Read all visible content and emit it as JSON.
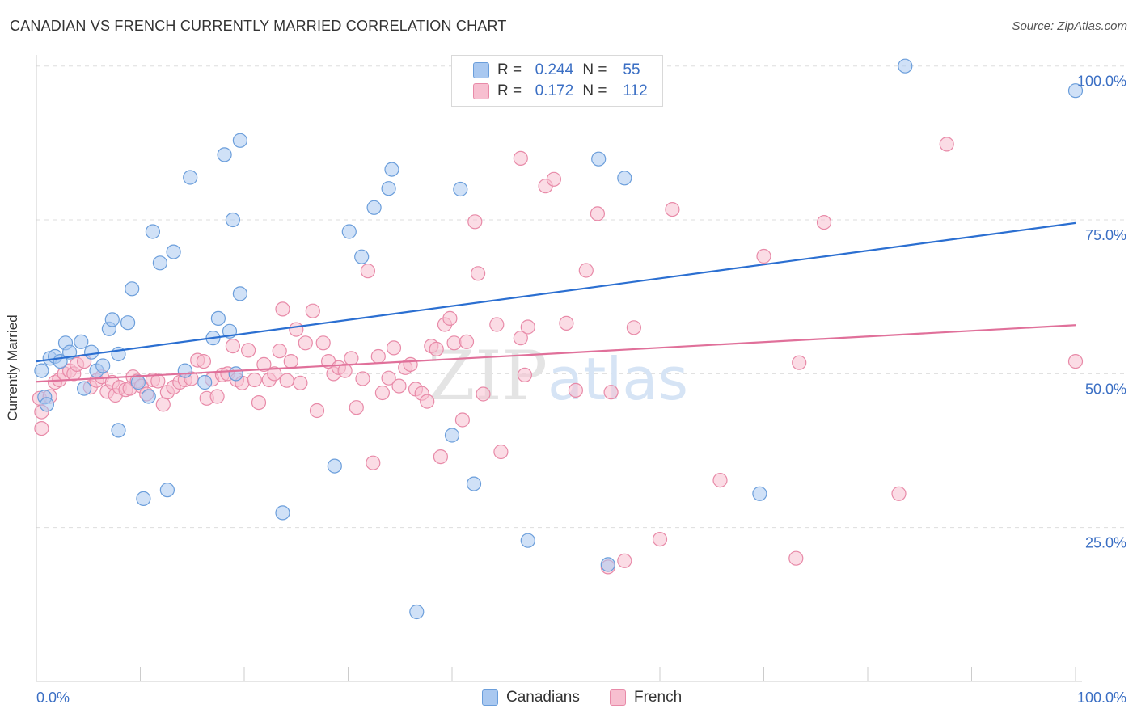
{
  "title": "CANADIAN VS FRENCH CURRENTLY MARRIED CORRELATION CHART",
  "source": "Source: ZipAtlas.com",
  "watermark": "ZIPatlas",
  "legend_top": {
    "rows": [
      {
        "r_label": "R =",
        "r_value": "0.244",
        "n_label": "N =",
        "n_value": "55",
        "color": "#a9c8f0"
      },
      {
        "r_label": "R =",
        "r_value": "0.172",
        "n_label": "N =",
        "n_value": "112",
        "color": "#f7bfd0"
      }
    ]
  },
  "legend_bottom": {
    "items": [
      {
        "label": "Canadians",
        "color": "#a9c8f0"
      },
      {
        "label": "French",
        "color": "#f7bfd0"
      }
    ]
  },
  "colors": {
    "canadians_fill": "#a9c8f0",
    "canadians_stroke": "#6b9edb",
    "canadians_line": "#2b6fd1",
    "french_fill": "#f7bfd0",
    "french_stroke": "#e88aa8",
    "french_line": "#e0709a",
    "tick_label": "#3b6fc4",
    "grid": "#dddddd"
  },
  "chart_data": {
    "type": "scatter",
    "title": "CANADIAN VS FRENCH CURRENTLY MARRIED CORRELATION CHART",
    "xlabel": "",
    "ylabel": "Currently Married",
    "x_tick_labels": [
      "0.0%",
      "100.0%"
    ],
    "y_tick_labels": [
      "25.0%",
      "50.0%",
      "75.0%",
      "100.0%"
    ],
    "xlim": [
      0,
      100
    ],
    "ylim": [
      0,
      102
    ],
    "grid": true,
    "legend_placement": "top-center",
    "series": [
      {
        "name": "Canadians",
        "r": 0.244,
        "n": 55,
        "trend": {
          "x": [
            0,
            100
          ],
          "y": [
            52.0,
            74.5
          ]
        },
        "points": [
          [
            0.5,
            50.5
          ],
          [
            1.3,
            52.5
          ],
          [
            1.8,
            52.8
          ],
          [
            2.3,
            52.0
          ],
          [
            2.8,
            55.0
          ],
          [
            3.2,
            53.5
          ],
          [
            4.3,
            55.2
          ],
          [
            4.6,
            47.6
          ],
          [
            5.3,
            53.5
          ],
          [
            5.8,
            50.5
          ],
          [
            6.4,
            51.3
          ],
          [
            7.0,
            57.3
          ],
          [
            7.3,
            58.8
          ],
          [
            7.9,
            53.2
          ],
          [
            7.9,
            40.8
          ],
          [
            8.8,
            58.3
          ],
          [
            9.2,
            63.8
          ],
          [
            9.8,
            48.6
          ],
          [
            10.3,
            29.7
          ],
          [
            10.8,
            46.3
          ],
          [
            11.2,
            73.1
          ],
          [
            11.9,
            68.0
          ],
          [
            12.6,
            31.1
          ],
          [
            13.2,
            69.8
          ],
          [
            14.3,
            50.5
          ],
          [
            14.8,
            81.9
          ],
          [
            16.2,
            48.6
          ],
          [
            17.0,
            55.8
          ],
          [
            17.5,
            59.0
          ],
          [
            18.1,
            85.6
          ],
          [
            18.6,
            56.9
          ],
          [
            18.9,
            75.0
          ],
          [
            19.2,
            50.0
          ],
          [
            19.6,
            87.9
          ],
          [
            19.6,
            63.0
          ],
          [
            23.7,
            27.4
          ],
          [
            28.7,
            35.0
          ],
          [
            30.1,
            73.1
          ],
          [
            31.3,
            69.0
          ],
          [
            32.5,
            77.0
          ],
          [
            33.9,
            80.1
          ],
          [
            34.2,
            83.2
          ],
          [
            36.6,
            11.3
          ],
          [
            40.0,
            40.0
          ],
          [
            40.8,
            80.0
          ],
          [
            42.1,
            32.1
          ],
          [
            47.3,
            22.9
          ],
          [
            54.1,
            84.9
          ],
          [
            55.0,
            19.0
          ],
          [
            56.6,
            81.8
          ],
          [
            69.6,
            30.5
          ],
          [
            83.6,
            100.0
          ],
          [
            100.0,
            96.0
          ],
          [
            0.8,
            46.2
          ],
          [
            1.0,
            45.0
          ]
        ]
      },
      {
        "name": "French",
        "r": 0.172,
        "n": 112,
        "trend": {
          "x": [
            0,
            100
          ],
          "y": [
            48.7,
            57.9
          ]
        },
        "points": [
          [
            0.3,
            46.0
          ],
          [
            0.5,
            43.8
          ],
          [
            0.5,
            41.1
          ],
          [
            1.3,
            46.3
          ],
          [
            1.8,
            48.6
          ],
          [
            2.2,
            49.0
          ],
          [
            2.7,
            50.0
          ],
          [
            3.2,
            50.5
          ],
          [
            3.6,
            50.0
          ],
          [
            3.9,
            51.5
          ],
          [
            4.6,
            52.0
          ],
          [
            5.2,
            47.8
          ],
          [
            5.8,
            48.9
          ],
          [
            6.3,
            49.5
          ],
          [
            6.8,
            47.1
          ],
          [
            7.3,
            48.6
          ],
          [
            7.6,
            46.5
          ],
          [
            8.0,
            47.8
          ],
          [
            8.6,
            47.4
          ],
          [
            9.0,
            47.6
          ],
          [
            9.3,
            49.5
          ],
          [
            9.7,
            48.8
          ],
          [
            10.1,
            48.0
          ],
          [
            10.6,
            46.7
          ],
          [
            11.2,
            49.0
          ],
          [
            11.7,
            48.8
          ],
          [
            12.2,
            45.0
          ],
          [
            12.6,
            47.0
          ],
          [
            13.2,
            47.8
          ],
          [
            13.8,
            48.6
          ],
          [
            14.3,
            49.0
          ],
          [
            14.9,
            49.2
          ],
          [
            15.5,
            52.2
          ],
          [
            16.1,
            52.0
          ],
          [
            16.4,
            46.0
          ],
          [
            16.9,
            49.1
          ],
          [
            17.4,
            46.3
          ],
          [
            17.9,
            49.8
          ],
          [
            18.4,
            50.0
          ],
          [
            18.9,
            54.5
          ],
          [
            19.3,
            49.0
          ],
          [
            19.8,
            48.5
          ],
          [
            20.4,
            53.8
          ],
          [
            21.0,
            49.0
          ],
          [
            21.4,
            45.3
          ],
          [
            21.9,
            51.5
          ],
          [
            22.4,
            49.0
          ],
          [
            22.9,
            50.0
          ],
          [
            23.4,
            53.7
          ],
          [
            23.7,
            60.5
          ],
          [
            24.1,
            48.9
          ],
          [
            24.5,
            52.0
          ],
          [
            25.0,
            57.2
          ],
          [
            25.4,
            48.5
          ],
          [
            25.9,
            55.0
          ],
          [
            26.6,
            60.2
          ],
          [
            27.0,
            44.0
          ],
          [
            27.6,
            55.0
          ],
          [
            28.1,
            52.0
          ],
          [
            28.6,
            50.0
          ],
          [
            29.1,
            51.0
          ],
          [
            29.7,
            50.5
          ],
          [
            30.3,
            52.5
          ],
          [
            30.8,
            44.5
          ],
          [
            31.4,
            49.2
          ],
          [
            31.9,
            66.7
          ],
          [
            32.4,
            35.5
          ],
          [
            32.9,
            52.8
          ],
          [
            33.3,
            46.9
          ],
          [
            33.9,
            49.3
          ],
          [
            34.4,
            54.2
          ],
          [
            34.9,
            48.0
          ],
          [
            35.5,
            51.0
          ],
          [
            36.0,
            51.5
          ],
          [
            36.5,
            47.5
          ],
          [
            37.1,
            46.8
          ],
          [
            37.6,
            45.5
          ],
          [
            38.0,
            54.5
          ],
          [
            38.5,
            54.0
          ],
          [
            38.9,
            36.5
          ],
          [
            39.3,
            58.0
          ],
          [
            39.8,
            59.0
          ],
          [
            40.2,
            55.0
          ],
          [
            41.0,
            42.5
          ],
          [
            41.4,
            55.2
          ],
          [
            42.2,
            74.7
          ],
          [
            42.5,
            66.3
          ],
          [
            43.0,
            46.7
          ],
          [
            44.3,
            58.0
          ],
          [
            44.7,
            37.3
          ],
          [
            46.6,
            85.0
          ],
          [
            46.6,
            55.8
          ],
          [
            47.3,
            57.6
          ],
          [
            49.0,
            80.5
          ],
          [
            49.8,
            81.6
          ],
          [
            51.0,
            58.2
          ],
          [
            51.9,
            47.3
          ],
          [
            52.9,
            66.8
          ],
          [
            54.0,
            76.0
          ],
          [
            55.3,
            47.0
          ],
          [
            56.6,
            19.6
          ],
          [
            57.5,
            57.5
          ],
          [
            60.0,
            23.1
          ],
          [
            61.2,
            76.7
          ],
          [
            65.8,
            32.7
          ],
          [
            70.0,
            69.1
          ],
          [
            73.1,
            20.0
          ],
          [
            73.4,
            51.8
          ],
          [
            75.8,
            74.6
          ],
          [
            83.0,
            30.5
          ],
          [
            87.6,
            87.3
          ],
          [
            100.0,
            52.0
          ],
          [
            55.0,
            18.6
          ],
          [
            47.0,
            49.8
          ]
        ]
      }
    ]
  }
}
